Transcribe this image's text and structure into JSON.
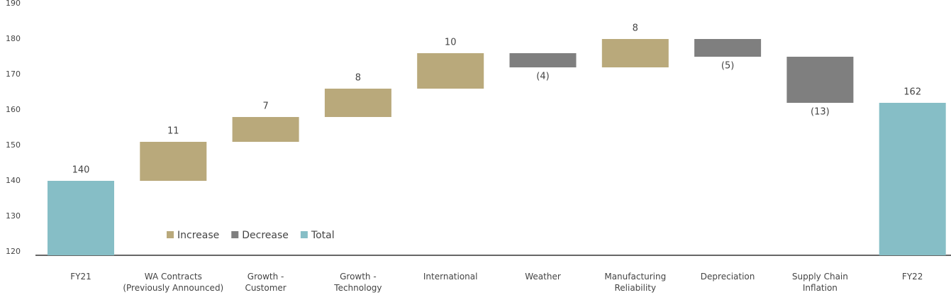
{
  "chart_data": {
    "type": "waterfall",
    "categories": [
      "FY21",
      "WA Contracts\n(Previously Announced)",
      "Growth -\nCustomer",
      "Growth -\nTechnology",
      "International",
      "Weather",
      "Manufacturing\nReliability",
      "Depreciation",
      "Supply Chain\nInflation",
      "FY22"
    ],
    "values": [
      140,
      11,
      7,
      8,
      10,
      -4,
      8,
      -5,
      -13,
      162
    ],
    "value_labels": [
      "140",
      "11",
      "7",
      "8",
      "10",
      "(4)",
      "8",
      "(5)",
      "(13)",
      "162"
    ],
    "is_total": [
      true,
      false,
      false,
      false,
      false,
      false,
      false,
      false,
      false,
      true
    ],
    "legend": [
      {
        "name": "Increase",
        "color": "#b9a97b"
      },
      {
        "name": "Decrease",
        "color": "#7f7f7f"
      },
      {
        "name": "Total",
        "color": "#86bec6"
      }
    ],
    "ylim": [
      119,
      190
    ],
    "yticks": [
      120,
      130,
      140,
      150,
      160,
      170,
      180,
      190
    ]
  }
}
